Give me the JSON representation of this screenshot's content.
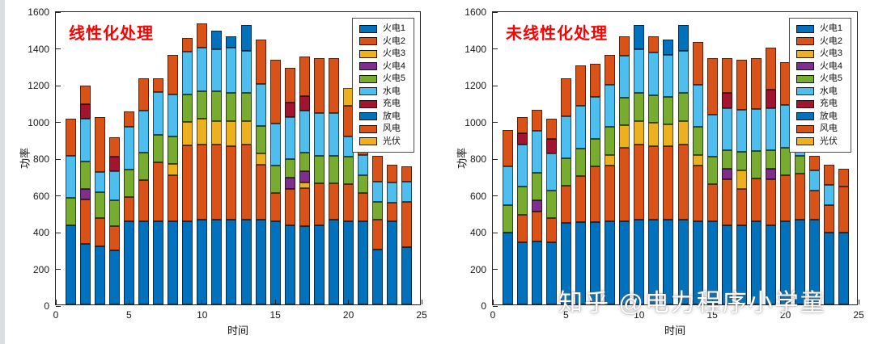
{
  "watermark": {
    "text": "知乎 @电力程序小学童"
  },
  "chart_data": [
    {
      "type": "bar",
      "stacked": true,
      "title": "线性化处理",
      "title_color": "#ff0000",
      "xlabel": "时间",
      "ylabel": "功率",
      "xlim": [
        0,
        25
      ],
      "ylim": [
        0,
        1600
      ],
      "xticks": [
        0,
        5,
        10,
        15,
        20,
        25
      ],
      "yticks": [
        0,
        200,
        400,
        600,
        800,
        1000,
        1200,
        1400,
        1600
      ],
      "legend_position": "top-right",
      "grid": false,
      "x": [
        1,
        2,
        3,
        4,
        5,
        6,
        7,
        8,
        9,
        10,
        11,
        12,
        13,
        14,
        15,
        16,
        17,
        18,
        19,
        20,
        21,
        22,
        23,
        24
      ],
      "series": [
        {
          "name": "火电1",
          "color": "#0072BD",
          "values": [
            430,
            330,
            315,
            295,
            455,
            455,
            455,
            455,
            455,
            460,
            460,
            460,
            460,
            460,
            455,
            430,
            425,
            430,
            460,
            455,
            455,
            300,
            455,
            310
          ]
        },
        {
          "name": "火电2",
          "color": "#D95319",
          "values": [
            0,
            240,
            155,
            130,
            130,
            220,
            320,
            250,
            410,
            410,
            410,
            400,
            410,
            300,
            150,
            200,
            210,
            230,
            200,
            200,
            150,
            160,
            100,
            250
          ]
        },
        {
          "name": "火电3",
          "color": "#EDB120",
          "values": [
            0,
            0,
            0,
            0,
            0,
            0,
            0,
            60,
            130,
            140,
            130,
            140,
            130,
            60,
            0,
            0,
            30,
            0,
            0,
            0,
            0,
            0,
            0,
            0
          ]
        },
        {
          "name": "火电4",
          "color": "#7E2F8E",
          "values": [
            0,
            60,
            0,
            0,
            0,
            0,
            0,
            0,
            0,
            0,
            0,
            0,
            0,
            0,
            0,
            60,
            60,
            0,
            0,
            0,
            0,
            0,
            0,
            0
          ]
        },
        {
          "name": "火电5",
          "color": "#77AC30",
          "values": [
            150,
            150,
            140,
            140,
            150,
            150,
            150,
            150,
            150,
            150,
            160,
            150,
            150,
            150,
            150,
            100,
            100,
            150,
            150,
            150,
            100,
            100,
            0,
            0
          ]
        },
        {
          "name": "水电",
          "color": "#4DBEEE",
          "values": [
            230,
            230,
            110,
            160,
            230,
            230,
            230,
            230,
            230,
            240,
            230,
            250,
            230,
            230,
            230,
            230,
            230,
            230,
            230,
            110,
            110,
            110,
            110,
            110
          ]
        },
        {
          "name": "充电",
          "color": "#A2142F",
          "values": [
            0,
            80,
            0,
            80,
            0,
            0,
            0,
            0,
            0,
            0,
            0,
            0,
            0,
            0,
            0,
            80,
            80,
            0,
            0,
            0,
            0,
            0,
            0,
            0
          ]
        },
        {
          "name": "放电",
          "color": "#0072BD",
          "values": [
            0,
            0,
            0,
            0,
            0,
            0,
            0,
            0,
            0,
            0,
            100,
            60,
            140,
            0,
            0,
            0,
            0,
            0,
            0,
            0,
            0,
            0,
            0,
            0
          ]
        },
        {
          "name": "风电",
          "color": "#D95319",
          "values": [
            200,
            100,
            300,
            105,
            85,
            175,
            75,
            215,
            75,
            130,
            0,
            0,
            0,
            240,
            345,
            190,
            215,
            300,
            300,
            165,
            315,
            140,
            95,
            80
          ]
        },
        {
          "name": "光伏",
          "color": "#EDB120",
          "values": [
            0,
            0,
            0,
            0,
            0,
            0,
            0,
            0,
            0,
            0,
            0,
            0,
            0,
            0,
            0,
            0,
            0,
            0,
            0,
            100,
            0,
            0,
            0,
            0
          ]
        }
      ]
    },
    {
      "type": "bar",
      "stacked": true,
      "title": "未线性化处理",
      "title_color": "#ff0000",
      "xlabel": "时间",
      "ylabel": "功率",
      "xlim": [
        0,
        25
      ],
      "ylim": [
        0,
        1600
      ],
      "xticks": [
        0,
        5,
        10,
        15,
        20,
        25
      ],
      "yticks": [
        0,
        200,
        400,
        600,
        800,
        1000,
        1200,
        1400,
        1600
      ],
      "legend_position": "top-right",
      "grid": false,
      "x": [
        1,
        2,
        3,
        4,
        5,
        6,
        7,
        8,
        9,
        10,
        11,
        12,
        13,
        14,
        15,
        16,
        17,
        18,
        19,
        20,
        21,
        22,
        23,
        24
      ],
      "series": [
        {
          "name": "火电1",
          "color": "#0072BD",
          "values": [
            390,
            340,
            345,
            340,
            445,
            450,
            450,
            455,
            455,
            460,
            460,
            460,
            460,
            455,
            455,
            430,
            430,
            455,
            430,
            455,
            460,
            460,
            390,
            390
          ]
        },
        {
          "name": "火电2",
          "color": "#D95319",
          "values": [
            0,
            150,
            160,
            130,
            200,
            250,
            300,
            300,
            400,
            410,
            400,
            400,
            410,
            300,
            200,
            250,
            200,
            230,
            250,
            250,
            250,
            160,
            150,
            250
          ]
        },
        {
          "name": "火电3",
          "color": "#EDB120",
          "values": [
            0,
            0,
            0,
            0,
            0,
            0,
            0,
            60,
            120,
            130,
            130,
            120,
            130,
            60,
            0,
            0,
            100,
            0,
            0,
            0,
            0,
            0,
            0,
            0
          ]
        },
        {
          "name": "火电4",
          "color": "#7E2F8E",
          "values": [
            0,
            0,
            60,
            0,
            0,
            0,
            0,
            0,
            0,
            0,
            0,
            0,
            0,
            0,
            0,
            60,
            0,
            0,
            60,
            0,
            0,
            0,
            0,
            0
          ]
        },
        {
          "name": "火电5",
          "color": "#77AC30",
          "values": [
            150,
            150,
            150,
            150,
            150,
            150,
            150,
            150,
            150,
            150,
            150,
            150,
            150,
            150,
            150,
            100,
            100,
            150,
            100,
            150,
            100,
            0,
            0,
            0
          ]
        },
        {
          "name": "水电",
          "color": "#4DBEEE",
          "values": [
            210,
            230,
            230,
            200,
            230,
            230,
            230,
            230,
            230,
            240,
            230,
            230,
            230,
            230,
            230,
            230,
            230,
            230,
            230,
            230,
            230,
            110,
            110,
            0
          ]
        },
        {
          "name": "充电",
          "color": "#A2142F",
          "values": [
            0,
            60,
            0,
            80,
            0,
            0,
            0,
            0,
            0,
            0,
            0,
            0,
            0,
            0,
            0,
            80,
            0,
            0,
            100,
            0,
            0,
            0,
            0,
            0
          ]
        },
        {
          "name": "放电",
          "color": "#0072BD",
          "values": [
            0,
            0,
            0,
            0,
            0,
            0,
            0,
            0,
            0,
            130,
            0,
            80,
            140,
            0,
            0,
            0,
            0,
            0,
            0,
            0,
            0,
            0,
            0,
            0
          ]
        },
        {
          "name": "风电",
          "color": "#D95319",
          "values": [
            200,
            90,
            115,
            110,
            205,
            220,
            180,
            165,
            105,
            0,
            90,
            0,
            0,
            235,
            305,
            190,
            270,
            275,
            230,
            235,
            320,
            80,
            110,
            100
          ]
        },
        {
          "name": "光伏",
          "color": "#EDB120",
          "values": [
            0,
            0,
            0,
            0,
            0,
            0,
            0,
            0,
            0,
            0,
            0,
            0,
            0,
            0,
            0,
            0,
            0,
            0,
            0,
            0,
            0,
            0,
            0,
            0
          ]
        }
      ]
    }
  ]
}
